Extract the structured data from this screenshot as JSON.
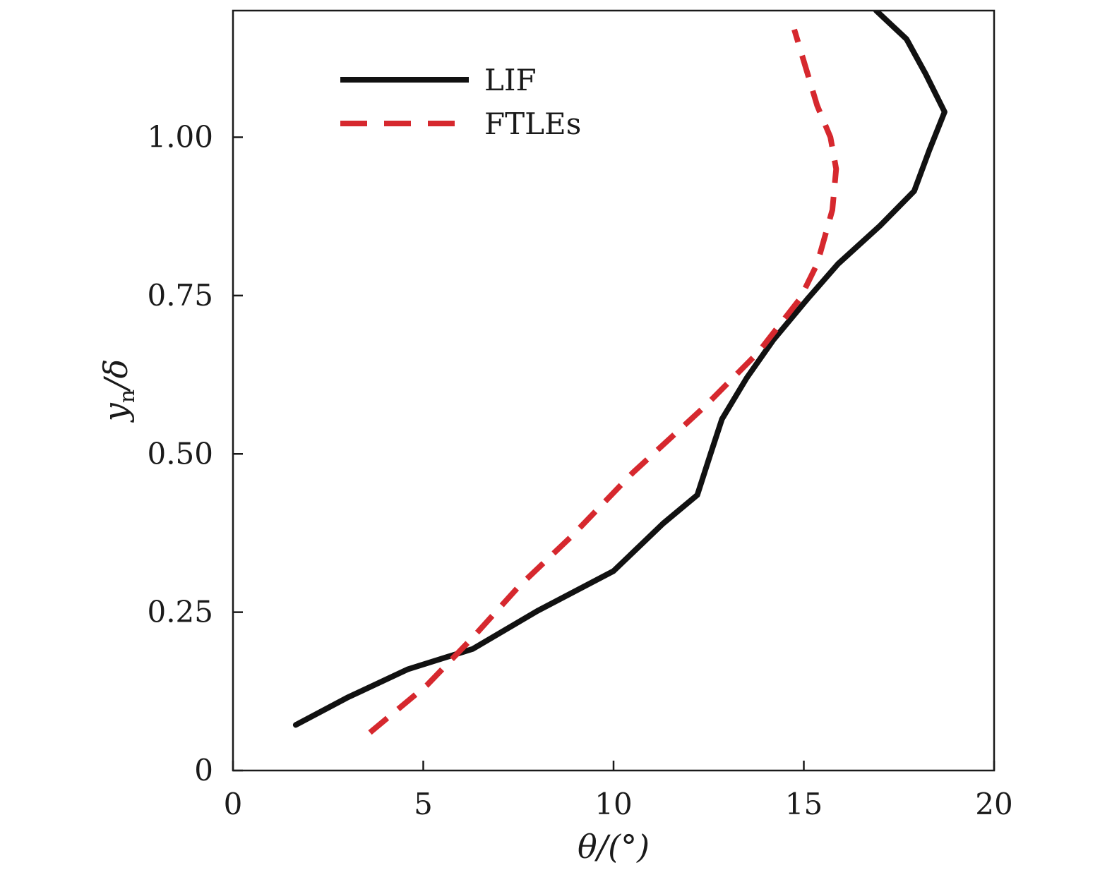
{
  "chart_data": {
    "type": "line",
    "title": "",
    "xlabel": "θ/(°)",
    "ylabel_main": "y",
    "ylabel_sub": "n",
    "ylabel_rest": "/δ",
    "xlim": [
      0,
      20
    ],
    "ylim": [
      0,
      1.2
    ],
    "xticks": [
      0,
      5,
      10,
      15,
      20
    ],
    "xtick_labels": [
      "0",
      "5",
      "10",
      "15",
      "20"
    ],
    "yticks": [
      0,
      0.25,
      0.5,
      0.75,
      1.0
    ],
    "ytick_labels": [
      "0",
      "0.25",
      "0.50",
      "0.75",
      "1.00"
    ],
    "grid": false,
    "legend_position": "top-left",
    "series": [
      {
        "name": "LIF",
        "color": "#111111",
        "style": "solid",
        "points": [
          {
            "x": 1.65,
            "y": 0.072
          },
          {
            "x": 3.0,
            "y": 0.115
          },
          {
            "x": 4.6,
            "y": 0.16
          },
          {
            "x": 6.3,
            "y": 0.192
          },
          {
            "x": 8.0,
            "y": 0.252
          },
          {
            "x": 10.0,
            "y": 0.315
          },
          {
            "x": 11.3,
            "y": 0.39
          },
          {
            "x": 12.2,
            "y": 0.435
          },
          {
            "x": 12.55,
            "y": 0.5
          },
          {
            "x": 12.85,
            "y": 0.555
          },
          {
            "x": 13.5,
            "y": 0.62
          },
          {
            "x": 14.2,
            "y": 0.68
          },
          {
            "x": 15.1,
            "y": 0.745
          },
          {
            "x": 15.9,
            "y": 0.8
          },
          {
            "x": 17.0,
            "y": 0.86
          },
          {
            "x": 17.9,
            "y": 0.915
          },
          {
            "x": 18.3,
            "y": 0.98
          },
          {
            "x": 18.7,
            "y": 1.04
          },
          {
            "x": 18.2,
            "y": 1.1
          },
          {
            "x": 17.7,
            "y": 1.155
          },
          {
            "x": 16.9,
            "y": 1.2
          }
        ]
      },
      {
        "name": "FTLEs",
        "color": "#d6282e",
        "style": "dashed",
        "points": [
          {
            "x": 3.6,
            "y": 0.06
          },
          {
            "x": 5.1,
            "y": 0.135
          },
          {
            "x": 6.3,
            "y": 0.21
          },
          {
            "x": 7.5,
            "y": 0.29
          },
          {
            "x": 8.9,
            "y": 0.37
          },
          {
            "x": 10.5,
            "y": 0.47
          },
          {
            "x": 12.4,
            "y": 0.575
          },
          {
            "x": 13.8,
            "y": 0.66
          },
          {
            "x": 14.9,
            "y": 0.745
          },
          {
            "x": 15.35,
            "y": 0.8
          },
          {
            "x": 15.75,
            "y": 0.885
          },
          {
            "x": 15.85,
            "y": 0.95
          },
          {
            "x": 15.7,
            "y": 1.0
          },
          {
            "x": 15.35,
            "y": 1.05
          },
          {
            "x": 15.1,
            "y": 1.1
          },
          {
            "x": 14.75,
            "y": 1.17
          }
        ]
      }
    ]
  }
}
